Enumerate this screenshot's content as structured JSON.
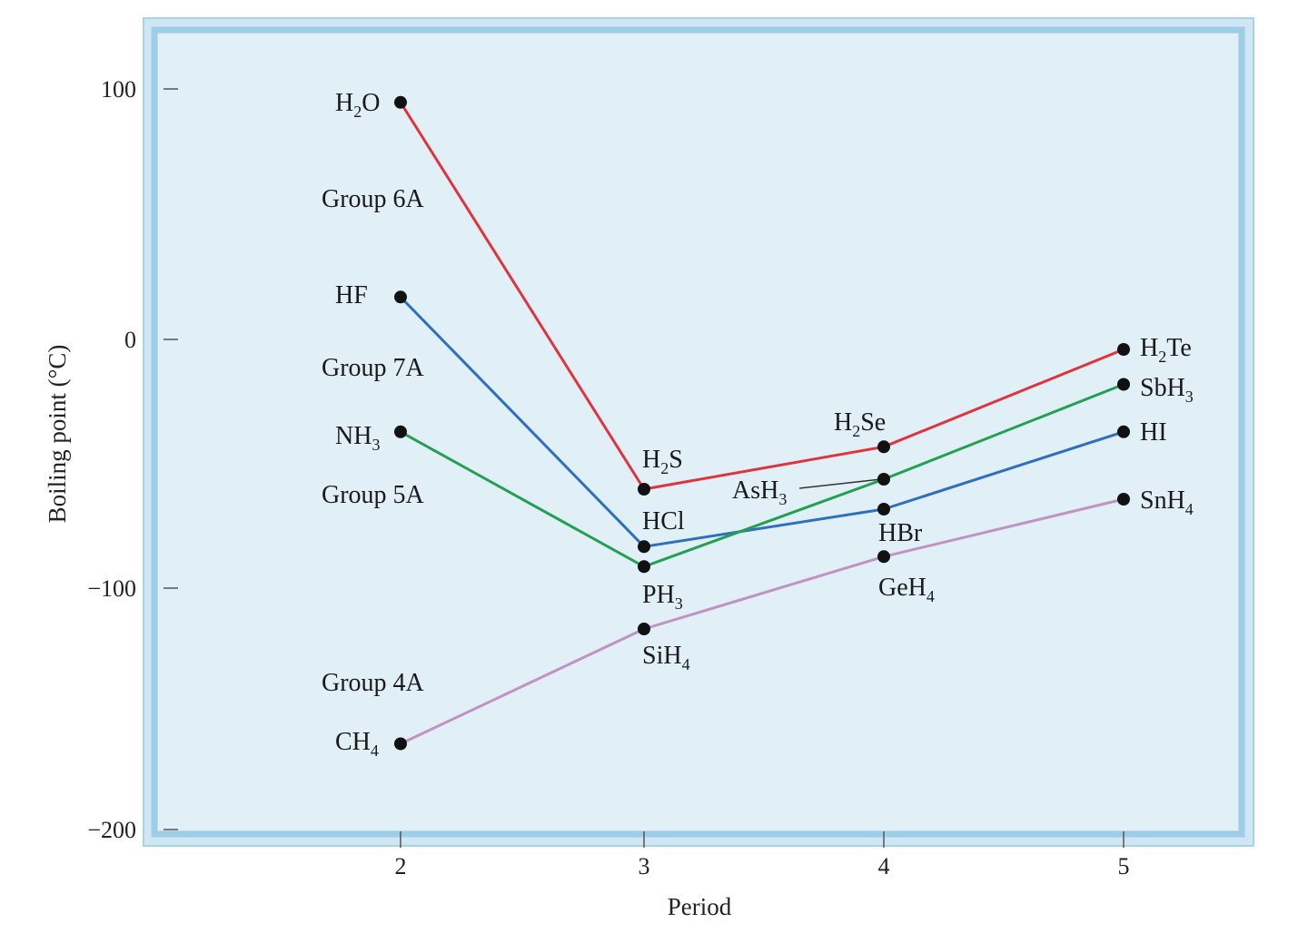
{
  "chart_data": {
    "type": "line",
    "title": "",
    "xlabel": "Period",
    "ylabel": "Boiling point (°C)",
    "x": [
      2,
      3,
      4,
      5
    ],
    "xticks": [
      "2",
      "3",
      "4",
      "5"
    ],
    "yticks": [
      "100",
      "0",
      "−100",
      "−200"
    ],
    "ylim": [
      -200,
      100
    ],
    "grid": false,
    "legend": "none",
    "series": [
      {
        "group": "Group 6A",
        "color": "#e0343c",
        "compounds": [
          "H2O",
          "H2S",
          "H2Se",
          "H2Te"
        ],
        "values": [
          95,
          -60,
          -43,
          -4
        ]
      },
      {
        "group": "Group 7A",
        "color": "#2f6fc0",
        "compounds": [
          "HF",
          "HCl",
          "HBr",
          "HI"
        ],
        "values": [
          17,
          -83,
          -68,
          -37
        ]
      },
      {
        "group": "Group 5A",
        "color": "#23a052",
        "compounds": [
          "NH3",
          "PH3",
          "AsH3",
          "SbH3"
        ],
        "values": [
          -37,
          -91,
          -56,
          -18
        ]
      },
      {
        "group": "Group 4A",
        "color": "#c192c4",
        "compounds": [
          "CH4",
          "SiH4",
          "GeH4",
          "SnH4"
        ],
        "values": [
          -162,
          -116,
          -87,
          -64
        ]
      }
    ]
  }
}
